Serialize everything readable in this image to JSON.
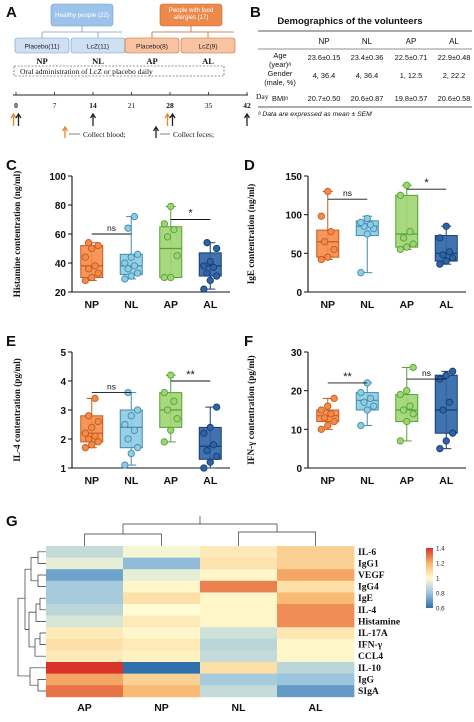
{
  "panels": {
    "A": "A",
    "B": "B",
    "C": "C",
    "D": "D",
    "E": "E",
    "F": "F",
    "G": "G"
  },
  "design": {
    "healthy": "Healthy people (22)",
    "allergy": "People with food allergies (17)",
    "groups": [
      {
        "box": "Placebo(11)",
        "label": "NP",
        "color": "#cfe0f5"
      },
      {
        "box": "LcZ(11)",
        "label": "NL",
        "color": "#cfe0f5"
      },
      {
        "box": "Placebo(8)",
        "label": "AP",
        "color": "#f8c3a2"
      },
      {
        "box": "LcZ(9)",
        "label": "AL",
        "color": "#f8c3a2"
      }
    ],
    "oral": "Oral administration of LcZ or placebo daily",
    "day_label": "Day",
    "days": [
      "0",
      "7",
      "14",
      "21",
      "28",
      "35",
      "42"
    ],
    "legend_blood": "Collect blood;",
    "legend_feces": "Collect feces;",
    "colors": {
      "healthy": "#9ec3ea",
      "allergy": "#ec8a4e",
      "blood_arrow": "#e0872f",
      "feces_arrow": "#222222"
    }
  },
  "table": {
    "title": "Demographics of the volunteers",
    "columns": [
      "",
      "NP",
      "NL",
      "AP",
      "AL"
    ],
    "rows": [
      {
        "label": "Age (year)ᵃ",
        "values": [
          "23.6±0.15",
          "23.4±0.36",
          "22.5±0.71",
          "22.9±0.48"
        ]
      },
      {
        "label": "Gender (male, %)",
        "values": [
          "4, 36.4",
          "4, 36.4",
          "1, 12.5",
          "2, 22.2"
        ]
      },
      {
        "label": "BMIᵃ",
        "values": [
          "20.7±0.50",
          "20.6±0.87",
          "19.8±0.57",
          "20.6±0.58"
        ]
      }
    ],
    "footnote": "ᵃ Data are expressed as mean ± SEM"
  },
  "chart_data": [
    {
      "panel": "C",
      "type": "box",
      "ylabel": "Histamine contentration (ng/ml)",
      "ylim": [
        20,
        100
      ],
      "yticks": [
        "20",
        "40",
        "60",
        "80",
        "100"
      ],
      "categories": [
        "NP",
        "NL",
        "AP",
        "AL"
      ],
      "boxes": [
        {
          "min": 28,
          "q1": 30,
          "median": 38,
          "q3": 52,
          "max": 54
        },
        {
          "min": 29,
          "q1": 32,
          "median": 38,
          "q3": 46,
          "max": 72
        },
        {
          "min": 30,
          "q1": 30,
          "median": 50,
          "q3": 65,
          "max": 79
        },
        {
          "min": 22,
          "q1": 31,
          "median": 38,
          "q3": 47,
          "max": 54
        }
      ],
      "points": [
        [
          28,
          30,
          33,
          36,
          38,
          44,
          50,
          52,
          54
        ],
        [
          29,
          31,
          33,
          36,
          38,
          40,
          44,
          46,
          64,
          72
        ],
        [
          30,
          30,
          45,
          58,
          63,
          67,
          79
        ],
        [
          22,
          28,
          31,
          33,
          37,
          38,
          41,
          50,
          54
        ]
      ],
      "comparisons": [
        {
          "from": 0,
          "to": 1,
          "label": "ns",
          "y": 60
        },
        {
          "from": 2,
          "to": 3,
          "label": "*",
          "y": 70
        }
      ]
    },
    {
      "panel": "D",
      "type": "box",
      "ylabel": "IgE contentration (ng/ml)",
      "ylim": [
        0,
        150
      ],
      "yticks": [
        "0",
        "50",
        "100",
        "150"
      ],
      "categories": [
        "NP",
        "NL",
        "AP",
        "AL"
      ],
      "boxes": [
        {
          "min": 42,
          "q1": 45,
          "median": 65,
          "q3": 80,
          "max": 130
        },
        {
          "min": 25,
          "q1": 73,
          "median": 85,
          "q3": 92,
          "max": 98
        },
        {
          "min": 55,
          "q1": 58,
          "median": 75,
          "q3": 125,
          "max": 138
        },
        {
          "min": 36,
          "q1": 40,
          "median": 50,
          "q3": 73,
          "max": 85
        }
      ],
      "points": [
        [
          42,
          45,
          55,
          65,
          78,
          98,
          130
        ],
        [
          25,
          75,
          82,
          85,
          87,
          90,
          95
        ],
        [
          55,
          58,
          62,
          70,
          78,
          125,
          138
        ],
        [
          36,
          40,
          44,
          48,
          52,
          70,
          85
        ]
      ],
      "comparisons": [
        {
          "from": 0,
          "to": 1,
          "label": "ns",
          "y": 120
        },
        {
          "from": 2,
          "to": 3,
          "label": "*",
          "y": 133
        }
      ]
    },
    {
      "panel": "E",
      "type": "box",
      "ylabel": "IL-4 contentration (pg/ml)",
      "ylim": [
        1,
        5
      ],
      "yticks": [
        "1",
        "2",
        "3",
        "4",
        "5"
      ],
      "categories": [
        "NP",
        "NL",
        "AP",
        "AL"
      ],
      "boxes": [
        {
          "min": 1.7,
          "q1": 1.9,
          "median": 2.2,
          "q3": 2.8,
          "max": 3.4
        },
        {
          "min": 1.1,
          "q1": 1.7,
          "median": 2.4,
          "q3": 3.0,
          "max": 3.6
        },
        {
          "min": 1.9,
          "q1": 2.4,
          "median": 3.0,
          "q3": 3.6,
          "max": 4.2
        },
        {
          "min": 1.0,
          "q1": 1.3,
          "median": 1.75,
          "q3": 2.4,
          "max": 3.1
        }
      ],
      "points": [
        [
          1.7,
          1.8,
          1.9,
          2.0,
          2.1,
          2.2,
          2.4,
          2.6,
          2.8,
          3.4
        ],
        [
          1.1,
          1.5,
          1.7,
          2.0,
          2.3,
          2.5,
          2.8,
          3.0,
          3.6
        ],
        [
          1.9,
          2.3,
          2.7,
          3.0,
          3.3,
          3.6,
          4.2
        ],
        [
          1.0,
          1.2,
          1.4,
          1.6,
          1.8,
          2.2,
          2.4,
          3.1
        ]
      ],
      "comparisons": [
        {
          "from": 0,
          "to": 1,
          "label": "ns",
          "y": 3.6
        },
        {
          "from": 2,
          "to": 3,
          "label": "**",
          "y": 4.0
        }
      ]
    },
    {
      "panel": "F",
      "type": "box",
      "ylabel": "IFN-γ contentration (pg/ml)",
      "ylim": [
        0,
        30
      ],
      "yticks": [
        "0",
        "10",
        "20",
        "30"
      ],
      "categories": [
        "NP",
        "NL",
        "AP",
        "AL"
      ],
      "boxes": [
        {
          "min": 10,
          "q1": 12,
          "median": 13.5,
          "q3": 15,
          "max": 18
        },
        {
          "min": 11,
          "q1": 15,
          "median": 17.5,
          "q3": 19.5,
          "max": 22
        },
        {
          "min": 7,
          "q1": 12,
          "median": 15,
          "q3": 19,
          "max": 26
        },
        {
          "min": 5,
          "q1": 9,
          "median": 15,
          "q3": 24,
          "max": 25
        }
      ],
      "points": [
        [
          10,
          11,
          12,
          13,
          14,
          15,
          16,
          18
        ],
        [
          11,
          15,
          16,
          17,
          18,
          19.5,
          22
        ],
        [
          7,
          12,
          14,
          15,
          16,
          19,
          20,
          26
        ],
        [
          5,
          7,
          9,
          15,
          17,
          23,
          24,
          25
        ]
      ],
      "comparisons": [
        {
          "from": 0,
          "to": 1,
          "label": "**",
          "y": 22
        },
        {
          "from": 2,
          "to": 3,
          "label": "ns",
          "y": 23
        }
      ]
    },
    {
      "panel": "G",
      "type": "heatmap",
      "columns": [
        "AP",
        "NP",
        "NL",
        "AL"
      ],
      "rows": [
        "IL-6",
        "IgG1",
        "VEGF",
        "IgG4",
        "IgE",
        "IL-4",
        "Histamine",
        "IL-17A",
        "IFN-γ",
        "CCL4",
        "IL-10",
        "IgG",
        "SIgA"
      ],
      "values": [
        [
          0.88,
          0.98,
          1.05,
          1.12
        ],
        [
          0.95,
          0.78,
          1.07,
          1.12
        ],
        [
          0.72,
          0.95,
          1.02,
          1.22
        ],
        [
          0.82,
          1.02,
          1.28,
          1.08
        ],
        [
          0.82,
          1.08,
          1.02,
          1.18
        ],
        [
          0.86,
          1.0,
          1.02,
          1.26
        ],
        [
          0.92,
          1.05,
          1.02,
          1.26
        ],
        [
          1.05,
          1.02,
          0.9,
          1.06
        ],
        [
          1.08,
          1.05,
          0.86,
          1.02
        ],
        [
          1.05,
          1.03,
          0.88,
          1.02
        ],
        [
          1.42,
          0.6,
          1.08,
          0.86
        ],
        [
          1.22,
          1.12,
          0.82,
          0.8
        ],
        [
          1.3,
          1.18,
          0.88,
          0.7
        ]
      ],
      "colorbar_ticks": [
        "1.4",
        "1.2",
        "1",
        "0.8",
        "0.6"
      ],
      "colorscale": [
        "#2f6fae",
        "#9cc5de",
        "#fffcd2",
        "#f9b36a",
        "#d73328"
      ]
    }
  ],
  "box_colors": {
    "NP": {
      "fill": "#f58b4a",
      "stroke": "#c55a1c"
    },
    "NL": {
      "fill": "#8fcbe3",
      "stroke": "#3f8dad"
    },
    "AP": {
      "fill": "#9ed572",
      "stroke": "#56a233"
    },
    "AL": {
      "fill": "#2d64a8",
      "stroke": "#173d70"
    }
  }
}
